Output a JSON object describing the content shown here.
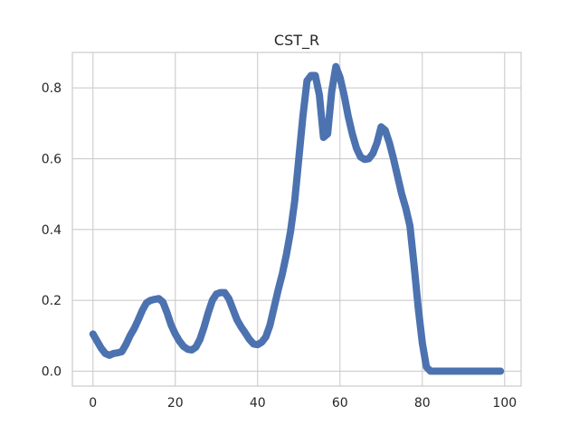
{
  "chart_data": {
    "type": "line",
    "title": "CST_R",
    "xlabel": "",
    "ylabel": "",
    "xlim": [
      -5,
      104
    ],
    "ylim": [
      -0.042,
      0.9
    ],
    "xticks": [
      0,
      20,
      40,
      60,
      80,
      100
    ],
    "xtick_labels": [
      "0",
      "20",
      "40",
      "60",
      "80",
      "100"
    ],
    "yticks": [
      0.0,
      0.2,
      0.4,
      0.6,
      0.8
    ],
    "ytick_labels": [
      "0.0",
      "0.2",
      "0.4",
      "0.6",
      "0.8"
    ],
    "grid": true,
    "series": [
      {
        "color": "#4c72b0",
        "x": [
          0,
          1,
          2,
          3,
          4,
          5,
          6,
          7,
          8,
          9,
          10,
          11,
          12,
          13,
          14,
          15,
          16,
          17,
          18,
          19,
          20,
          21,
          22,
          23,
          24,
          25,
          26,
          27,
          28,
          29,
          30,
          31,
          32,
          33,
          34,
          35,
          36,
          37,
          38,
          39,
          40,
          41,
          42,
          43,
          44,
          45,
          46,
          47,
          48,
          49,
          50,
          51,
          52,
          53,
          54,
          55,
          56,
          57,
          58,
          59,
          60,
          61,
          62,
          63,
          64,
          65,
          66,
          67,
          68,
          69,
          70,
          71,
          72,
          73,
          74,
          75,
          76,
          77,
          78,
          79,
          80,
          81,
          82,
          83,
          84,
          85,
          86,
          87,
          88,
          89,
          90,
          91,
          92,
          93,
          94,
          95,
          96,
          97,
          98,
          99
        ],
        "y": [
          0.105,
          0.085,
          0.065,
          0.05,
          0.045,
          0.05,
          0.052,
          0.055,
          0.075,
          0.1,
          0.12,
          0.145,
          0.172,
          0.193,
          0.2,
          0.203,
          0.205,
          0.195,
          0.165,
          0.13,
          0.105,
          0.085,
          0.07,
          0.062,
          0.06,
          0.068,
          0.09,
          0.125,
          0.165,
          0.2,
          0.218,
          0.222,
          0.222,
          0.205,
          0.175,
          0.145,
          0.125,
          0.108,
          0.09,
          0.077,
          0.075,
          0.082,
          0.097,
          0.13,
          0.18,
          0.23,
          0.275,
          0.33,
          0.395,
          0.48,
          0.6,
          0.72,
          0.82,
          0.835,
          0.835,
          0.78,
          0.66,
          0.67,
          0.79,
          0.86,
          0.83,
          0.78,
          0.72,
          0.67,
          0.63,
          0.605,
          0.598,
          0.6,
          0.615,
          0.645,
          0.69,
          0.68,
          0.645,
          0.6,
          0.55,
          0.5,
          0.46,
          0.41,
          0.3,
          0.18,
          0.08,
          0.012,
          0.0,
          0.0,
          0.0,
          0.0,
          0.0,
          0.0,
          0.0,
          0.0,
          0.0,
          0.0,
          0.0,
          0.0,
          0.0,
          0.0,
          0.0,
          0.0,
          0.0,
          0.0
        ]
      }
    ]
  }
}
